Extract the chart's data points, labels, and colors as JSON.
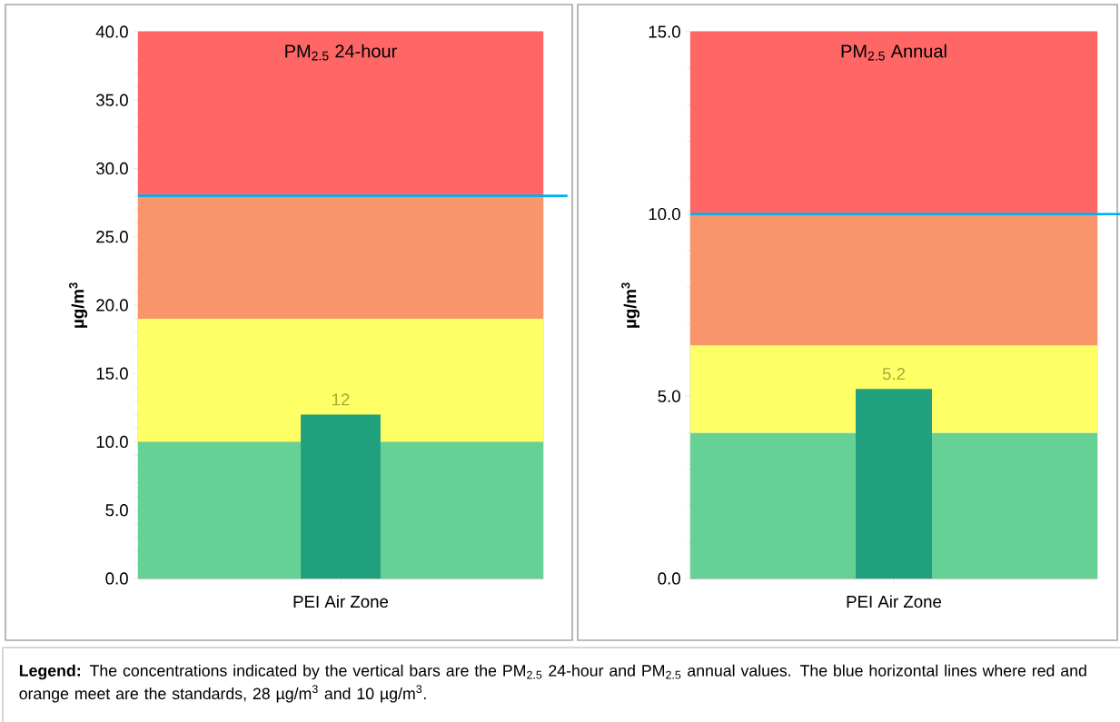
{
  "chart_data": [
    {
      "type": "bar",
      "title": "PM$_{2.5}$ 24-hour",
      "ylabel": "µg/m$^{3}$",
      "categories": [
        "PEI Air Zone"
      ],
      "values": [
        12
      ],
      "color": "#21a07d",
      "data_labels": true,
      "ylim": [
        0,
        40
      ],
      "yticks": [
        {
          "value": 0,
          "label": "0.0"
        },
        {
          "value": 5,
          "label": "5.0"
        },
        {
          "value": 10,
          "label": "10.0"
        },
        {
          "value": 15,
          "label": "15.0"
        },
        {
          "value": 20,
          "label": "20.0"
        },
        {
          "value": 25,
          "label": "25.0"
        },
        {
          "value": 30,
          "label": "30.0"
        },
        {
          "value": 35,
          "label": "35.0"
        },
        {
          "value": 40,
          "label": "40.0"
        }
      ],
      "grid": "y",
      "bands": [
        {
          "axis": "y",
          "from": 0,
          "to": 10,
          "color": "#66d194"
        },
        {
          "axis": "y",
          "from": 10,
          "to": 19,
          "color": "#ffff66"
        },
        {
          "axis": "y",
          "from": 19,
          "to": 28,
          "color": "#f9956a"
        },
        {
          "axis": "y",
          "from": 28,
          "to": 40,
          "color": "#ff6666"
        }
      ],
      "ref_lines": [
        {
          "axis": "y",
          "value": 28,
          "color": "#00b0f0"
        }
      ]
    },
    {
      "type": "bar",
      "title": "PM$_{2.5}$ Annual",
      "ylabel": "µg/m$^{3}$",
      "categories": [
        "PEI Air Zone"
      ],
      "values": [
        5.2
      ],
      "color": "#21a07d",
      "data_labels": true,
      "ylim": [
        0,
        15
      ],
      "yticks": [
        {
          "value": 0,
          "label": "0.0"
        },
        {
          "value": 5,
          "label": "5.0"
        },
        {
          "value": 10,
          "label": "10.0"
        },
        {
          "value": 15,
          "label": "15.0"
        }
      ],
      "grid": "y",
      "bands": [
        {
          "axis": "y",
          "from": 0,
          "to": 4,
          "color": "#66d194"
        },
        {
          "axis": "y",
          "from": 4,
          "to": 6.4,
          "color": "#ffff66"
        },
        {
          "axis": "y",
          "from": 6.4,
          "to": 10,
          "color": "#f9956a"
        },
        {
          "axis": "y",
          "from": 10,
          "to": 15,
          "color": "#ff6666"
        }
      ],
      "ref_lines": [
        {
          "axis": "y",
          "value": 10,
          "color": "#00b0f0"
        }
      ]
    },
    {
      "type": "other",
      "annotations": [
        "**Legend:**  The concentrations indicated by the vertical bars are the PM$_{2.5}$ 24-hour and PM$_{2.5}$ annual values.  The blue horizontal lines where red and orange meet are the standards, 28 µg/m$^{3}$ and 10 µg/m$^{3}$."
      ]
    }
  ]
}
